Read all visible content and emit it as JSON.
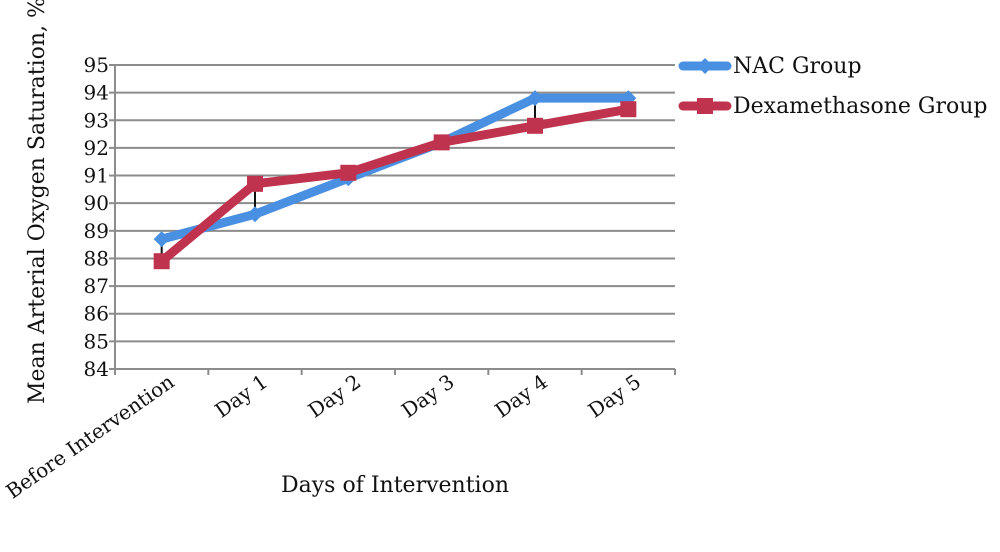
{
  "chart_data": {
    "type": "line",
    "categories": [
      "Before Intervention",
      "Day 1",
      "Day 2",
      "Day 3",
      "Day 4",
      "Day 5"
    ],
    "series": [
      {
        "name": "NAC Group",
        "values": [
          88.7,
          89.6,
          90.9,
          92.2,
          93.8,
          93.8
        ],
        "color": "#4a90e2",
        "marker": "diamond"
      },
      {
        "name": "Dexamethasone Group",
        "values": [
          87.9,
          90.7,
          91.1,
          92.2,
          92.8,
          93.4
        ],
        "color": "#c0334e",
        "marker": "square"
      }
    ],
    "error_bars": [
      {
        "category": "Before Intervention",
        "low": 87.8,
        "high": 88.7
      },
      {
        "category": "Day 1",
        "low": 89.6,
        "high": 90.7
      },
      {
        "category": "Day 2",
        "low": 90.9,
        "high": 91.1
      },
      {
        "category": "Day 4",
        "low": 92.8,
        "high": 93.8
      },
      {
        "category": "Day 5",
        "low": 93.4,
        "high": 93.8
      }
    ],
    "title": "",
    "xlabel": "Days of Intervention",
    "ylabel": "Mean Arterial Oxygen Saturation, %",
    "ylim": [
      84,
      95
    ],
    "yticks": [
      84,
      85,
      86,
      87,
      88,
      89,
      90,
      91,
      92,
      93,
      94,
      95
    ],
    "grid": true,
    "legend_position": "top-right"
  }
}
